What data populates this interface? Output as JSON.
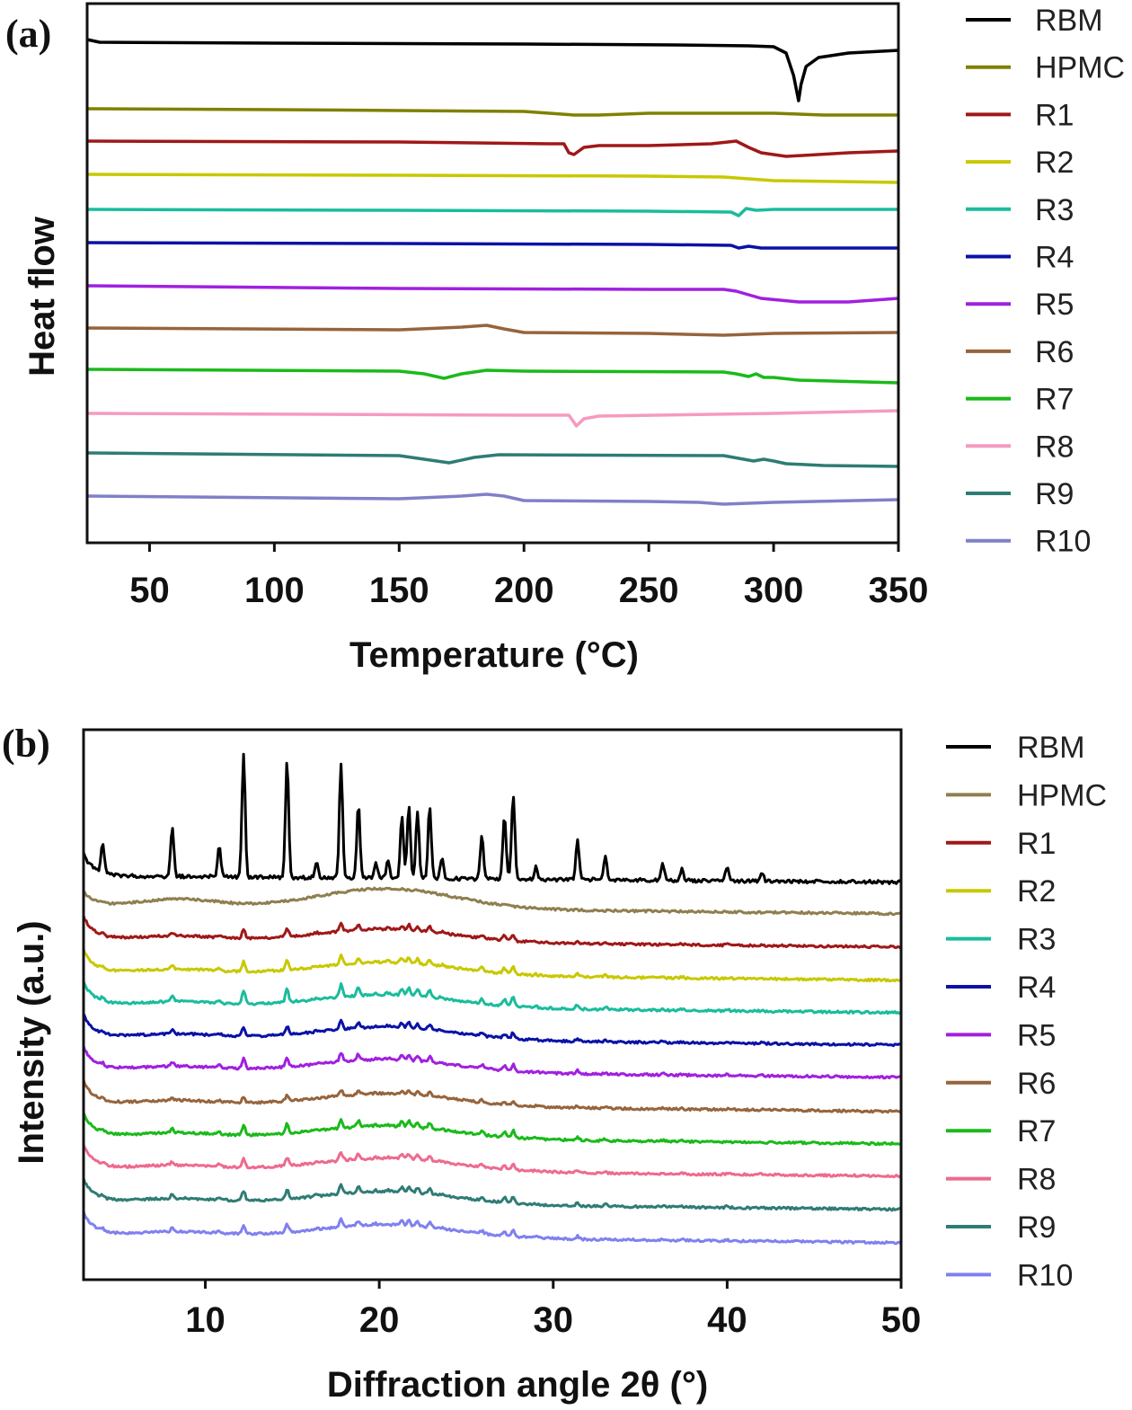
{
  "chart_data": [
    {
      "panel_label": "(a)",
      "type": "line",
      "xlabel": "Temperature (°C)",
      "ylabel": "Heat flow",
      "xlim": [
        25,
        350
      ],
      "xticks": [
        50,
        100,
        150,
        200,
        250,
        300,
        350
      ],
      "grid": false,
      "legend_position": "right",
      "offsets_stacked": true,
      "series": [
        {
          "name": "RBM",
          "color": "#000000",
          "baseline": 44,
          "points": [
            [
              25,
              40
            ],
            [
              30,
              43
            ],
            [
              100,
              44
            ],
            [
              200,
              45
            ],
            [
              260,
              46
            ],
            [
              290,
              47
            ],
            [
              300,
              48
            ],
            [
              305,
              55
            ],
            [
              308,
              80
            ],
            [
              310,
              108
            ],
            [
              311,
              90
            ],
            [
              313,
              70
            ],
            [
              318,
              60
            ],
            [
              330,
              55
            ],
            [
              350,
              52
            ]
          ]
        },
        {
          "name": "HPMC",
          "color": "#808000",
          "baseline": 117,
          "points": [
            [
              25,
              117
            ],
            [
              100,
              118
            ],
            [
              200,
              120
            ],
            [
              220,
              124
            ],
            [
              230,
              124
            ],
            [
              250,
              122
            ],
            [
              300,
              122
            ],
            [
              320,
              124
            ],
            [
              350,
              124
            ]
          ]
        },
        {
          "name": "R1",
          "color": "#a01818",
          "baseline": 153,
          "points": [
            [
              25,
              153
            ],
            [
              150,
              154
            ],
            [
              210,
              156
            ],
            [
              216,
              156
            ],
            [
              218,
              166
            ],
            [
              220,
              168
            ],
            [
              224,
              160
            ],
            [
              230,
              158
            ],
            [
              250,
              158
            ],
            [
              275,
              156
            ],
            [
              285,
              153
            ],
            [
              290,
              160
            ],
            [
              295,
              166
            ],
            [
              305,
              170
            ],
            [
              330,
              166
            ],
            [
              350,
              164
            ]
          ]
        },
        {
          "name": "R2",
          "color": "#c8c800",
          "baseline": 190,
          "points": [
            [
              25,
              190
            ],
            [
              150,
              191
            ],
            [
              250,
              192
            ],
            [
              280,
              193
            ],
            [
              300,
              197
            ],
            [
              350,
              199
            ]
          ]
        },
        {
          "name": "R3",
          "color": "#1abc9c",
          "baseline": 229,
          "points": [
            [
              25,
              229
            ],
            [
              150,
              230
            ],
            [
              250,
              231
            ],
            [
              283,
              232
            ],
            [
              286,
              236
            ],
            [
              289,
              228
            ],
            [
              293,
              230
            ],
            [
              300,
              229
            ],
            [
              350,
              229
            ]
          ]
        },
        {
          "name": "R4",
          "color": "#0a12a6",
          "baseline": 266,
          "points": [
            [
              25,
              266
            ],
            [
              150,
              267
            ],
            [
              250,
              268
            ],
            [
              283,
              269
            ],
            [
              286,
              272
            ],
            [
              290,
              270
            ],
            [
              295,
              272
            ],
            [
              300,
              272
            ],
            [
              350,
              272
            ]
          ]
        },
        {
          "name": "R5",
          "color": "#a020e0",
          "baseline": 314,
          "points": [
            [
              25,
              314
            ],
            [
              150,
              317
            ],
            [
              250,
              318
            ],
            [
              280,
              318
            ],
            [
              285,
              320
            ],
            [
              295,
              328
            ],
            [
              310,
              332
            ],
            [
              330,
              332
            ],
            [
              350,
              328
            ]
          ]
        },
        {
          "name": "R6",
          "color": "#96643c",
          "baseline": 361,
          "points": [
            [
              25,
              361
            ],
            [
              150,
              363
            ],
            [
              175,
              360
            ],
            [
              185,
              358
            ],
            [
              192,
              362
            ],
            [
              200,
              366
            ],
            [
              250,
              367
            ],
            [
              280,
              369
            ],
            [
              300,
              367
            ],
            [
              350,
              366
            ]
          ]
        },
        {
          "name": "R7",
          "color": "#1aba1a",
          "baseline": 407,
          "points": [
            [
              25,
              407
            ],
            [
              150,
              409
            ],
            [
              160,
              412
            ],
            [
              168,
              417
            ],
            [
              175,
              412
            ],
            [
              185,
              408
            ],
            [
              200,
              409
            ],
            [
              280,
              410
            ],
            [
              285,
              412
            ],
            [
              290,
              415
            ],
            [
              293,
              412
            ],
            [
              296,
              416
            ],
            [
              300,
              416
            ],
            [
              310,
              419
            ],
            [
              350,
              422
            ]
          ]
        },
        {
          "name": "R8",
          "color": "#f59ac0",
          "baseline": 456,
          "points": [
            [
              25,
              456
            ],
            [
              200,
              458
            ],
            [
              218,
              458
            ],
            [
              221,
              470
            ],
            [
              224,
              462
            ],
            [
              230,
              459
            ],
            [
              300,
              456
            ],
            [
              350,
              453
            ]
          ]
        },
        {
          "name": "R9",
          "color": "#2f7c74",
          "baseline": 500,
          "points": [
            [
              25,
              500
            ],
            [
              150,
              503
            ],
            [
              160,
              507
            ],
            [
              170,
              511
            ],
            [
              180,
              505
            ],
            [
              190,
              502
            ],
            [
              280,
              503
            ],
            [
              286,
              506
            ],
            [
              292,
              509
            ],
            [
              296,
              507
            ],
            [
              300,
              509
            ],
            [
              305,
              512
            ],
            [
              320,
              514
            ],
            [
              350,
              515
            ]
          ]
        },
        {
          "name": "R10",
          "color": "#8080c8",
          "baseline": 548,
          "points": [
            [
              25,
              548
            ],
            [
              150,
              551
            ],
            [
              175,
              548
            ],
            [
              185,
              546
            ],
            [
              192,
              548
            ],
            [
              200,
              553
            ],
            [
              250,
              554
            ],
            [
              270,
              555
            ],
            [
              280,
              557
            ],
            [
              300,
              555
            ],
            [
              350,
              552
            ]
          ]
        }
      ]
    },
    {
      "panel_label": "(b)",
      "type": "line",
      "xlabel": "Diffraction angle 2θ (°)",
      "ylabel": "Intensity (a.u.)",
      "xlim": [
        3,
        50
      ],
      "xticks": [
        10,
        20,
        30,
        40,
        50
      ],
      "grid": false,
      "legend_position": "right",
      "offsets_stacked": true,
      "peaks_2theta": [
        4.1,
        8.1,
        10.8,
        12.2,
        14.7,
        16.4,
        17.8,
        18.8,
        19.8,
        20.5,
        21.3,
        21.7,
        22.2,
        22.9,
        23.6,
        25.9,
        27.2,
        27.7,
        29.0,
        31.4,
        33.0,
        36.3,
        37.4,
        40.0,
        42.0
      ],
      "rbm_peak_heights": [
        34,
        55,
        34,
        135,
        128,
        16,
        127,
        82,
        18,
        20,
        68,
        82,
        75,
        80,
        23,
        48,
        70,
        95,
        14,
        45,
        26,
        18,
        14,
        16,
        10
      ],
      "series": [
        {
          "name": "RBM",
          "color": "#000000",
          "baseline": 978,
          "scale": 1.0
        },
        {
          "name": "HPMC",
          "color": "#8f7f4f",
          "baseline": 1012,
          "scale": 0.0
        },
        {
          "name": "R1",
          "color": "#a01818",
          "baseline": 1049,
          "scale": 0.07
        },
        {
          "name": "R2",
          "color": "#c8c800",
          "baseline": 1086,
          "scale": 0.08
        },
        {
          "name": "R3",
          "color": "#1abc9c",
          "baseline": 1122,
          "scale": 0.11
        },
        {
          "name": "R4",
          "color": "#0a12a6",
          "baseline": 1158,
          "scale": 0.07
        },
        {
          "name": "R5",
          "color": "#a020e0",
          "baseline": 1194,
          "scale": 0.08
        },
        {
          "name": "R6",
          "color": "#96643c",
          "baseline": 1232,
          "scale": 0.05
        },
        {
          "name": "R7",
          "color": "#1aba1a",
          "baseline": 1268,
          "scale": 0.08
        },
        {
          "name": "R8",
          "color": "#ee6a8f",
          "baseline": 1304,
          "scale": 0.07
        },
        {
          "name": "R9",
          "color": "#2f7c74",
          "baseline": 1341,
          "scale": 0.08
        },
        {
          "name": "R10",
          "color": "#8080f0",
          "baseline": 1378,
          "scale": 0.07
        }
      ]
    }
  ]
}
